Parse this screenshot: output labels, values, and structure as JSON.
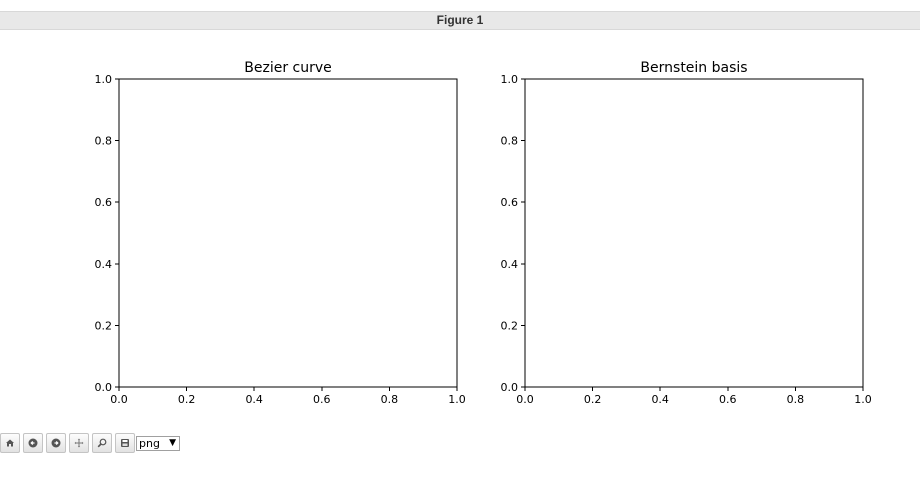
{
  "window": {
    "title": "Figure 1"
  },
  "toolbar": {
    "buttons": [
      {
        "name": "home",
        "icon": "home-icon"
      },
      {
        "name": "back",
        "icon": "arrow-left-icon"
      },
      {
        "name": "forward",
        "icon": "arrow-right-icon"
      },
      {
        "name": "pan",
        "icon": "move-icon"
      },
      {
        "name": "zoom",
        "icon": "magnifier-icon"
      },
      {
        "name": "download",
        "icon": "floppy-disk-icon"
      }
    ],
    "format_value": "png",
    "format_arrow": "▼"
  },
  "chart_data": [
    {
      "type": "line",
      "title": "Bezier curve",
      "xlabel": "",
      "ylabel": "",
      "xlim": [
        0.0,
        1.0
      ],
      "ylim": [
        0.0,
        1.0
      ],
      "x_ticks": [
        "0.0",
        "0.2",
        "0.4",
        "0.6",
        "0.8",
        "1.0"
      ],
      "y_ticks": [
        "0.0",
        "0.2",
        "0.4",
        "0.6",
        "0.8",
        "1.0"
      ],
      "series": [],
      "grid": false
    },
    {
      "type": "line",
      "title": "Bernstein basis",
      "xlabel": "",
      "ylabel": "",
      "xlim": [
        0.0,
        1.0
      ],
      "ylim": [
        0.0,
        1.0
      ],
      "x_ticks": [
        "0.0",
        "0.2",
        "0.4",
        "0.6",
        "0.8",
        "1.0"
      ],
      "y_ticks": [
        "0.0",
        "0.2",
        "0.4",
        "0.6",
        "0.8",
        "1.0"
      ],
      "series": [],
      "grid": false
    }
  ]
}
